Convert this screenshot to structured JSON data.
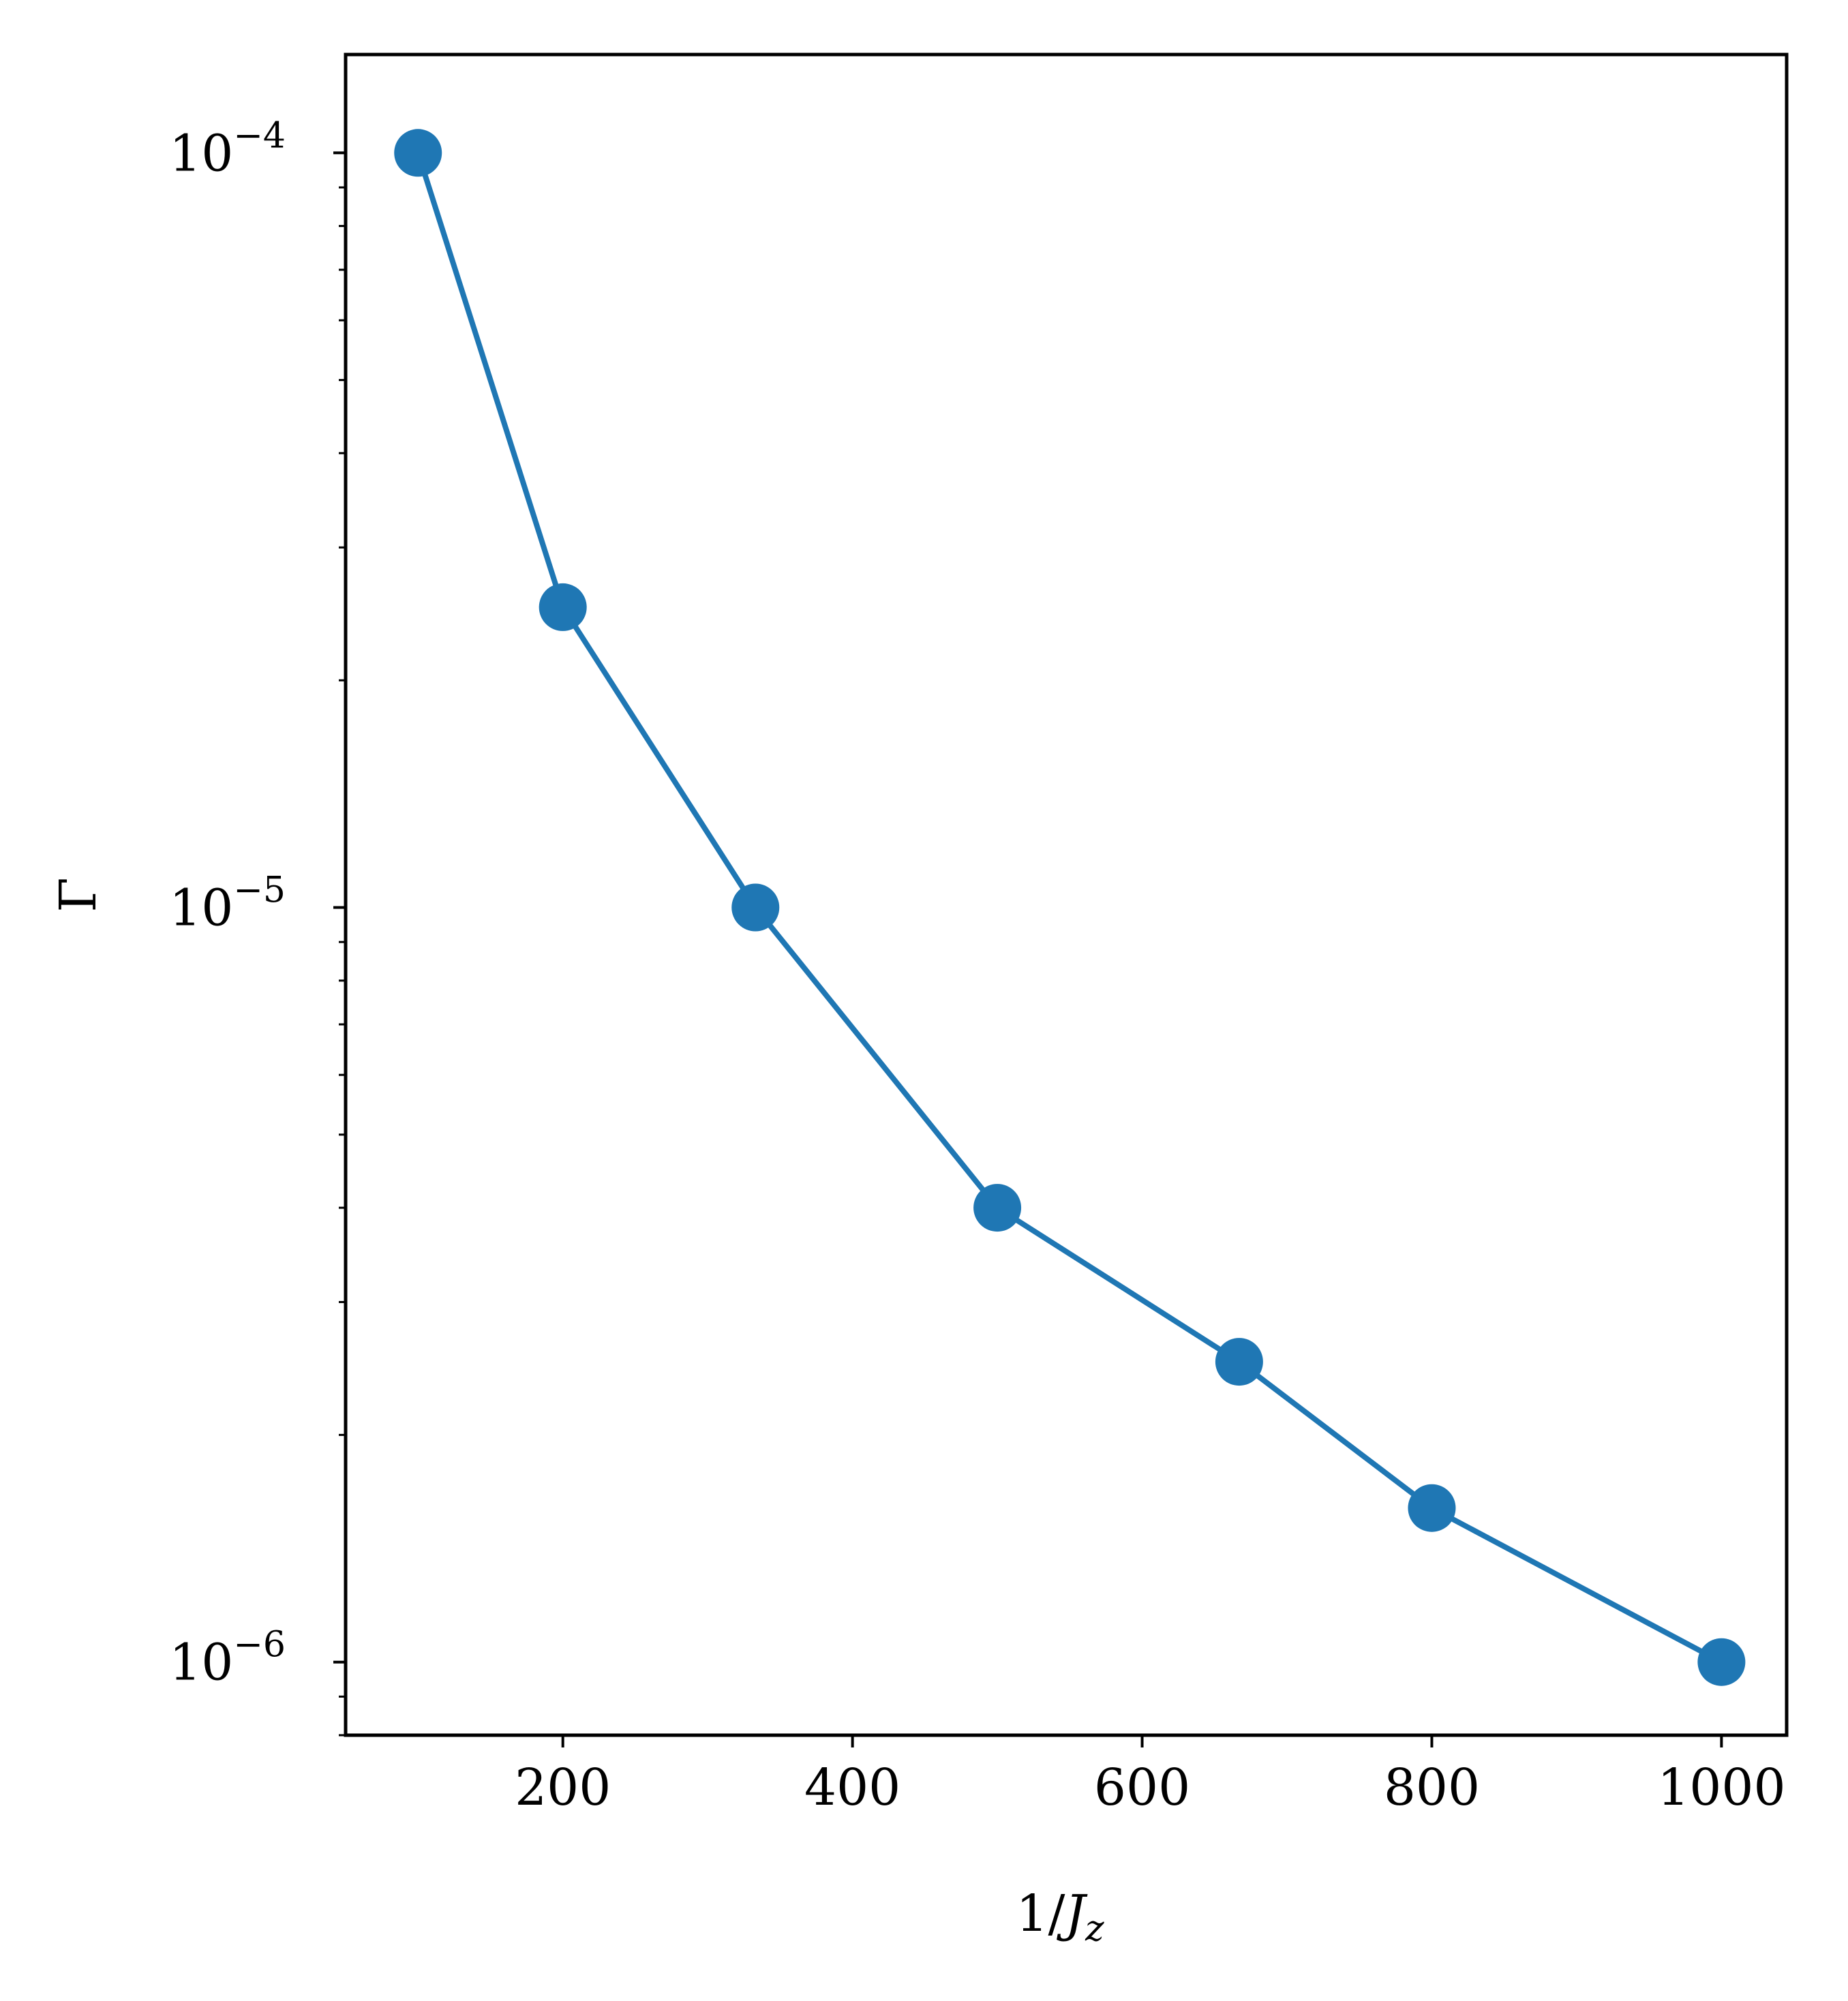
{
  "chart_data": {
    "type": "line",
    "title": "",
    "xlabel": "1/J_z",
    "ylabel": "Γ",
    "xlim": [
      50,
      1045
    ],
    "ylim": [
      8e-07,
      0.000135
    ],
    "yscale": "log",
    "grid": false,
    "x_ticks": [
      200,
      400,
      600,
      800,
      1000
    ],
    "x_tick_labels": [
      "200",
      "400",
      "600",
      "800",
      "1000"
    ],
    "y_ticks": [
      1e-06,
      1e-05,
      0.0001
    ],
    "y_tick_labels": [
      {
        "base": "10",
        "exp": "−6"
      },
      {
        "base": "10",
        "exp": "−5"
      },
      {
        "base": "10",
        "exp": "−4"
      }
    ],
    "series": [
      {
        "color": "#1f77b4",
        "marker": "circle",
        "x": [
          100,
          200,
          333,
          500,
          667,
          800,
          1000
        ],
        "y": [
          0.0001,
          2.5e-05,
          1e-05,
          4e-06,
          2.5e-06,
          1.6e-06,
          1e-06
        ]
      }
    ]
  }
}
